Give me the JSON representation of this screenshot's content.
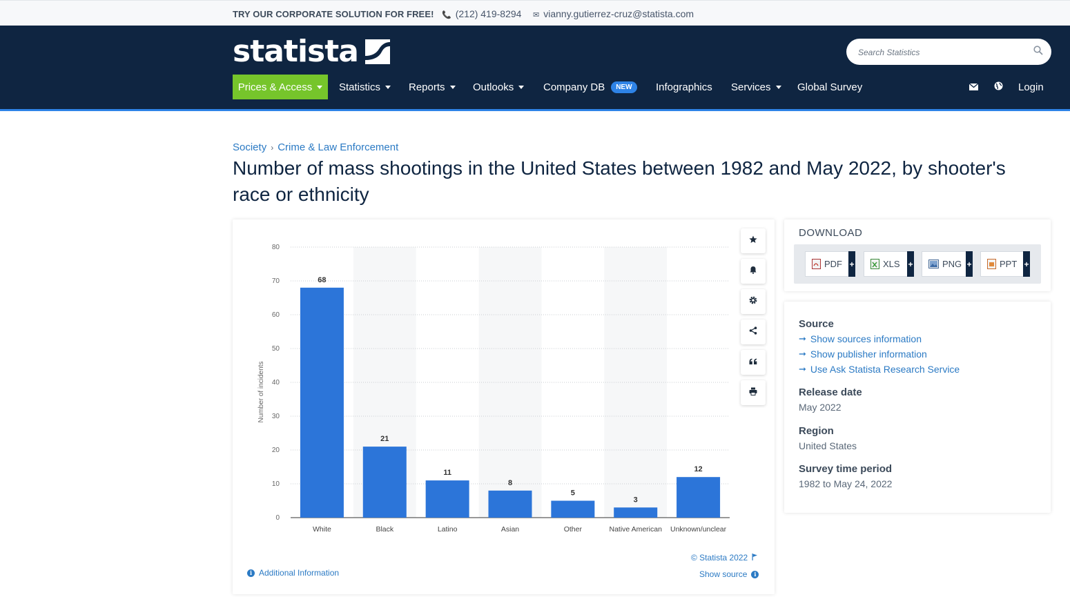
{
  "topbar": {
    "promo": "TRY OUR CORPORATE SOLUTION FOR FREE!",
    "phone": "(212) 419-8294",
    "email": "vianny.gutierrez-cruz@statista.com"
  },
  "header": {
    "logo_text": "statista",
    "search_placeholder": "Search Statistics",
    "nav": {
      "prices": "Prices & Access",
      "statistics": "Statistics",
      "reports": "Reports",
      "outlooks": "Outlooks",
      "company_db": "Company DB",
      "new_badge": "NEW",
      "infographics": "Infographics",
      "services": "Services",
      "global_survey": "Global Survey",
      "login": "Login"
    }
  },
  "breadcrumb": {
    "level1": "Society",
    "separator": "›",
    "level2": "Crime & Law Enforcement"
  },
  "page_title": "Number of mass shootings in the United States between 1982 and May 2022, by shooter's race or ethnicity",
  "chart_data": {
    "type": "bar",
    "categories": [
      "White",
      "Black",
      "Latino",
      "Asian",
      "Other",
      "Native American",
      "Unknown/unclear"
    ],
    "values": [
      68,
      21,
      11,
      8,
      5,
      3,
      12
    ],
    "ylabel": "Number of incidents",
    "xlabel": "",
    "ylim": [
      0,
      80
    ],
    "yticks": [
      0,
      10,
      20,
      30,
      40,
      50,
      60,
      70,
      80
    ],
    "grid": true,
    "bar_color": "#2c75d9"
  },
  "chart_footer": {
    "copyright": "© Statista 2022",
    "additional_info": "Additional Information",
    "show_source": "Show source"
  },
  "download": {
    "title": "DOWNLOAD",
    "buttons": [
      "PDF",
      "XLS",
      "PNG",
      "PPT"
    ],
    "plus": "+"
  },
  "info": {
    "source_heading": "Source",
    "links": [
      "Show sources information",
      "Show publisher information",
      "Use Ask Statista Research Service"
    ],
    "release_heading": "Release date",
    "release_value": "May 2022",
    "region_heading": "Region",
    "region_value": "United States",
    "survey_heading": "Survey time period",
    "survey_value": "1982 to May 24, 2022"
  },
  "colors": {
    "navy": "#0f2541",
    "accent_green": "#76c52b",
    "accent_blue": "#2e83e6",
    "link": "#2b7ac4"
  }
}
